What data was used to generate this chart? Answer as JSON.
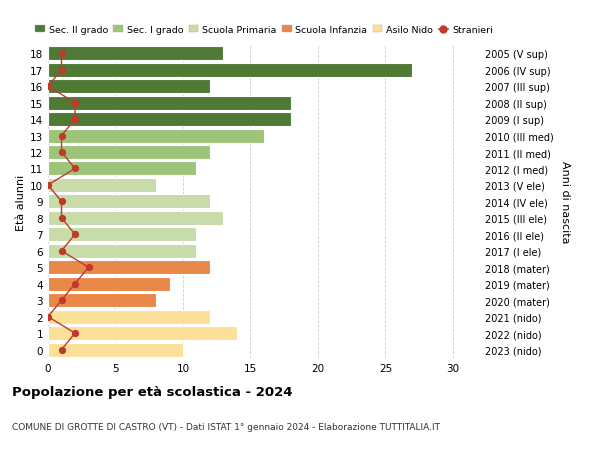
{
  "ages": [
    0,
    1,
    2,
    3,
    4,
    5,
    6,
    7,
    8,
    9,
    10,
    11,
    12,
    13,
    14,
    15,
    16,
    17,
    18
  ],
  "bar_values": [
    10,
    14,
    12,
    8,
    9,
    12,
    11,
    11,
    13,
    12,
    8,
    11,
    12,
    16,
    18,
    18,
    12,
    27,
    13
  ],
  "bar_colors": [
    "#fce09a",
    "#fce09a",
    "#fce09a",
    "#e8894a",
    "#e8894a",
    "#e8894a",
    "#c8dcaa",
    "#c8dcaa",
    "#c8dcaa",
    "#c8dcaa",
    "#c8dcaa",
    "#9ec47a",
    "#9ec47a",
    "#9ec47a",
    "#4e7a35",
    "#4e7a35",
    "#4e7a35",
    "#4e7a35",
    "#4e7a35"
  ],
  "stranieri_values": [
    1,
    2,
    0,
    1,
    2,
    3,
    1,
    2,
    1,
    1,
    0,
    2,
    1,
    1,
    2,
    2,
    0,
    1,
    1
  ],
  "right_labels": [
    "2023 (nido)",
    "2022 (nido)",
    "2021 (nido)",
    "2020 (mater)",
    "2019 (mater)",
    "2018 (mater)",
    "2017 (I ele)",
    "2016 (II ele)",
    "2015 (III ele)",
    "2014 (IV ele)",
    "2013 (V ele)",
    "2012 (I med)",
    "2011 (II med)",
    "2010 (III med)",
    "2009 (I sup)",
    "2008 (II sup)",
    "2007 (III sup)",
    "2006 (IV sup)",
    "2005 (V sup)"
  ],
  "ylabel_left": "Età alunni",
  "ylabel_right": "Anni di nascita",
  "title": "Popolazione per età scolastica - 2024",
  "subtitle": "COMUNE DI GROTTE DI CASTRO (VT) - Dati ISTAT 1° gennaio 2024 - Elaborazione TUTTITALIA.IT",
  "xlim": [
    0,
    32
  ],
  "xticks": [
    0,
    5,
    10,
    15,
    20,
    25,
    30
  ],
  "legend_labels": [
    "Sec. II grado",
    "Sec. I grado",
    "Scuola Primaria",
    "Scuola Infanzia",
    "Asilo Nido",
    "Stranieri"
  ],
  "legend_colors": [
    "#4e7a35",
    "#9ec47a",
    "#c8dcaa",
    "#e8894a",
    "#fce09a",
    "#c0392b"
  ],
  "bg_color": "#ffffff",
  "grid_color": "#cccccc",
  "bar_edge_color": "#ffffff"
}
